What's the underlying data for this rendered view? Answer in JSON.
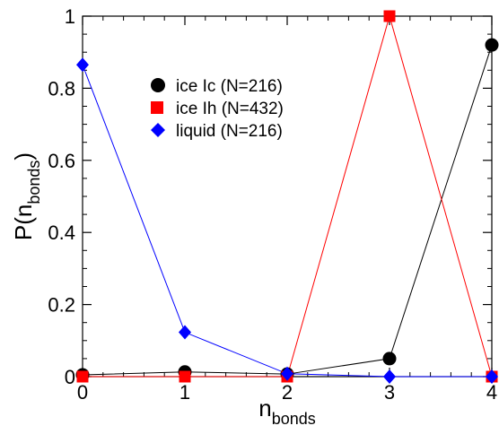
{
  "chart_data": {
    "type": "line",
    "x": [
      0,
      1,
      2,
      3,
      4
    ],
    "xlim": [
      0,
      4
    ],
    "ylim": [
      0,
      1
    ],
    "xticks": [
      "0",
      "1",
      "2",
      "3",
      "4"
    ],
    "yticks": [
      "0",
      "0.2",
      "0.4",
      "0.6",
      "0.8",
      "1"
    ],
    "xlabel": {
      "main": "n",
      "sub": "bonds"
    },
    "ylabel": {
      "prefix": "P(n",
      "sub": "bonds",
      "suffix": ")"
    },
    "grid": false,
    "legend_position": "upper-left",
    "series": [
      {
        "name": "ice Ic (N=216)",
        "color": "#000000",
        "marker": "circle",
        "values": [
          0.005,
          0.013,
          0.007,
          0.05,
          0.92
        ]
      },
      {
        "name": "ice Ih (N=432)",
        "color": "#ff0000",
        "marker": "square",
        "values": [
          0.0,
          0.0,
          0.0,
          1.0,
          0.0
        ]
      },
      {
        "name": "liquid (N=216)",
        "color": "#0000ff",
        "marker": "diamond",
        "values": [
          0.865,
          0.123,
          0.008,
          0.0,
          0.0
        ]
      }
    ]
  }
}
